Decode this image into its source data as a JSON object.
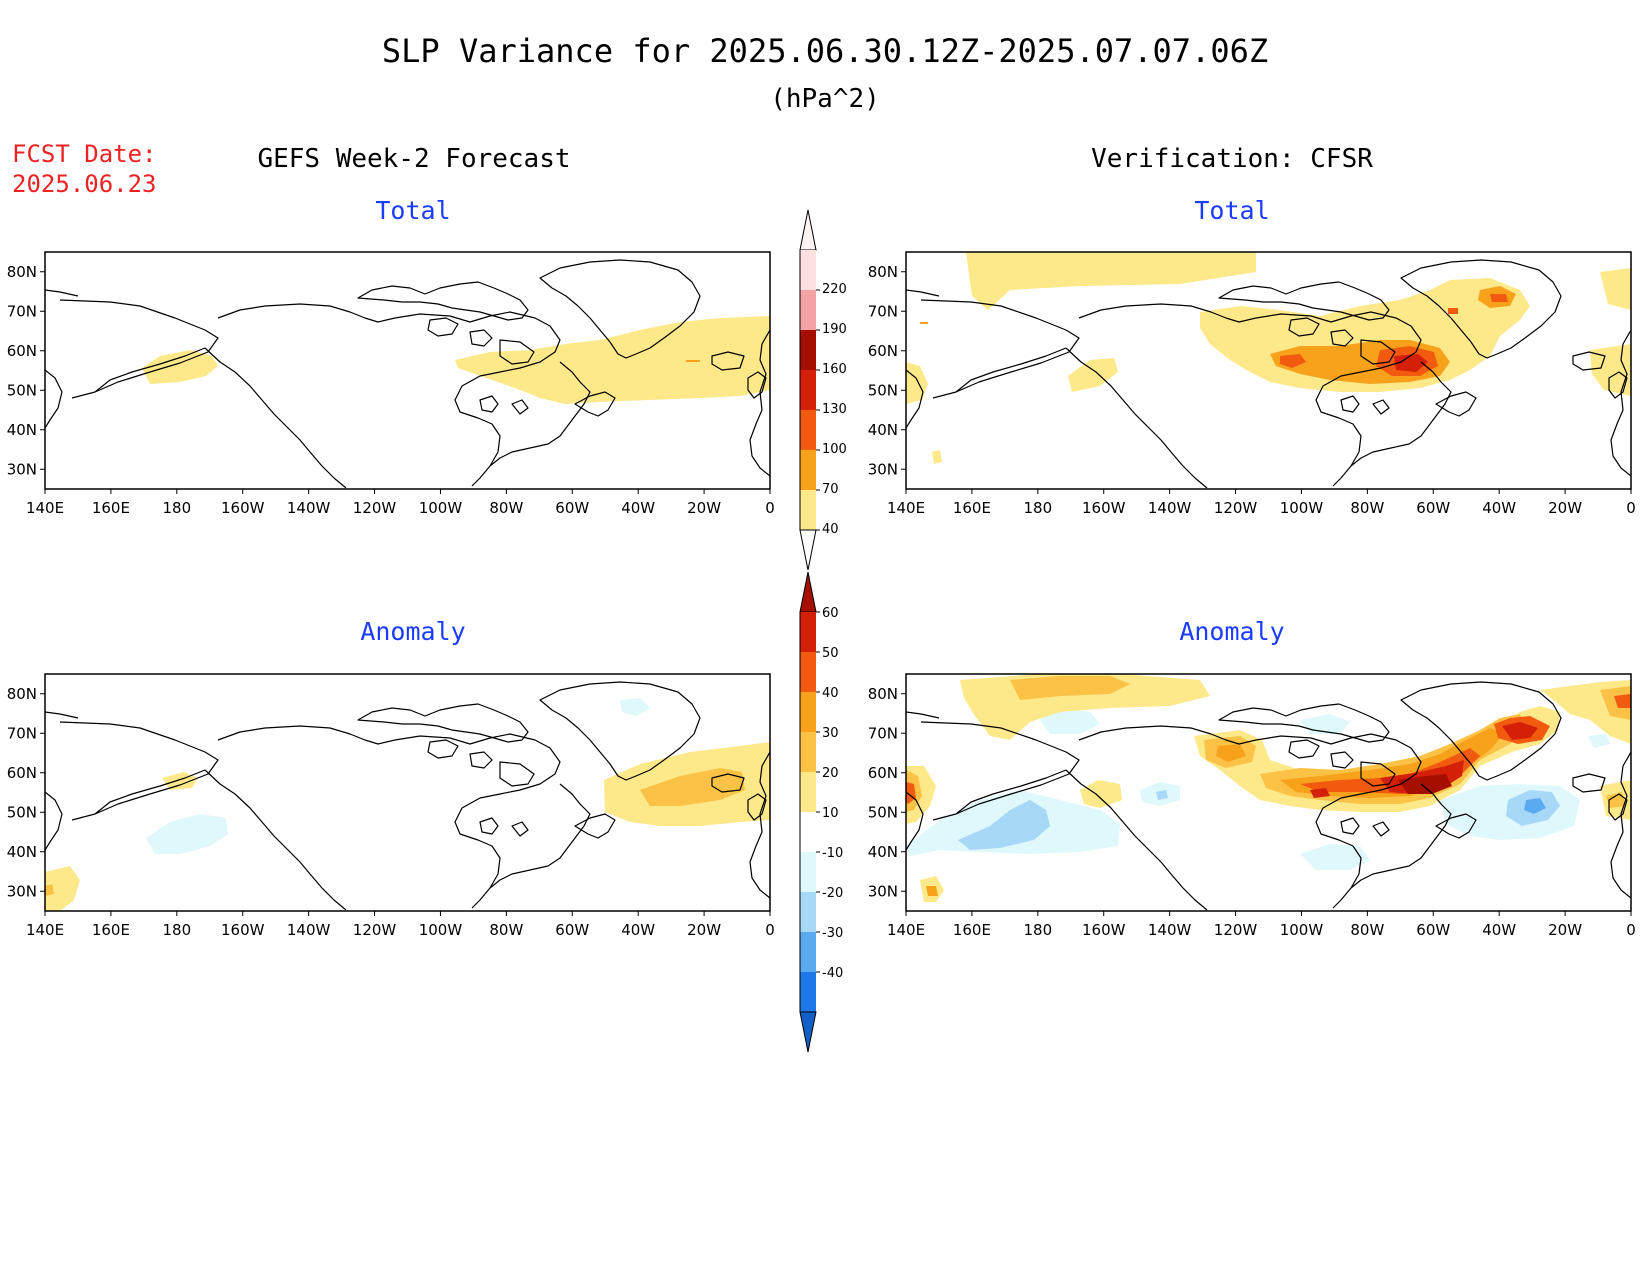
{
  "header": {
    "title": "SLP Variance for 2025.06.30.12Z-2025.07.07.06Z",
    "units": "(hPa^2)",
    "fcst_label": "FCST Date:",
    "fcst_date": "2025.06.23"
  },
  "columns": {
    "left_title": "GEFS Week-2 Forecast",
    "right_title": "Verification: CFSR"
  },
  "rows": {
    "total": "Total",
    "anomaly": "Anomaly"
  },
  "axes": {
    "lon_ticks": [
      "140E",
      "160E",
      "180",
      "160W",
      "140W",
      "120W",
      "100W",
      "80W",
      "60W",
      "40W",
      "20W",
      "0"
    ],
    "lat_ticks": [
      "80N",
      "70N",
      "60N",
      "50N",
      "40N",
      "30N"
    ]
  },
  "colorbars": {
    "total": {
      "labels": [
        "220",
        "190",
        "160",
        "130",
        "100",
        "70",
        "40"
      ],
      "colors": [
        "#fde0e0",
        "#f4a3a5",
        "#a50f00",
        "#d42008",
        "#f25a10",
        "#f7a21a",
        "#fde88a"
      ]
    },
    "anomaly": {
      "labels": [
        "60",
        "50",
        "40",
        "30",
        "20",
        "10",
        "-10",
        "-20",
        "-30",
        "-40"
      ],
      "colors": [
        "#a50f00",
        "#d42008",
        "#f25a10",
        "#f7a21a",
        "#fbc245",
        "#fde88a",
        "#ffffff",
        "#dff8fc",
        "#a8d8f8",
        "#5aaaf0",
        "#1f78e8",
        "#1060c8"
      ]
    }
  },
  "colors": {
    "title_red": "#ee2222",
    "subtitle_blue": "#1a3cff"
  }
}
